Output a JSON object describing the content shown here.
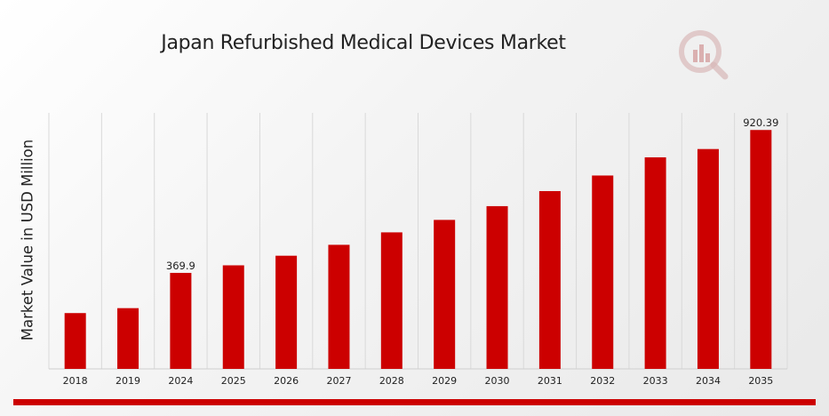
{
  "colors": {
    "bar": "#cc0000",
    "grid": "#d9d9d9",
    "accent": "#cc0000"
  },
  "logo_icon": "chart-magnifier-logo-icon",
  "chart_data": {
    "type": "bar",
    "title": "Japan Refurbished Medical Devices Market",
    "xlabel": "",
    "ylabel": "Market Value in USD Million",
    "categories": [
      "2018",
      "2019",
      "2024",
      "2025",
      "2026",
      "2027",
      "2028",
      "2029",
      "2030",
      "2031",
      "2032",
      "2033",
      "2034",
      "2035"
    ],
    "values": [
      215.0,
      234.0,
      369.9,
      399.0,
      436.0,
      478.0,
      526.0,
      574.0,
      627.0,
      685.0,
      745.0,
      815.0,
      847.0,
      920.39
    ],
    "data_labels": {
      "2024": "369.9",
      "2035": "920.39"
    },
    "ylim": [
      0,
      1000
    ],
    "grid": "vertical",
    "legend": "none"
  }
}
